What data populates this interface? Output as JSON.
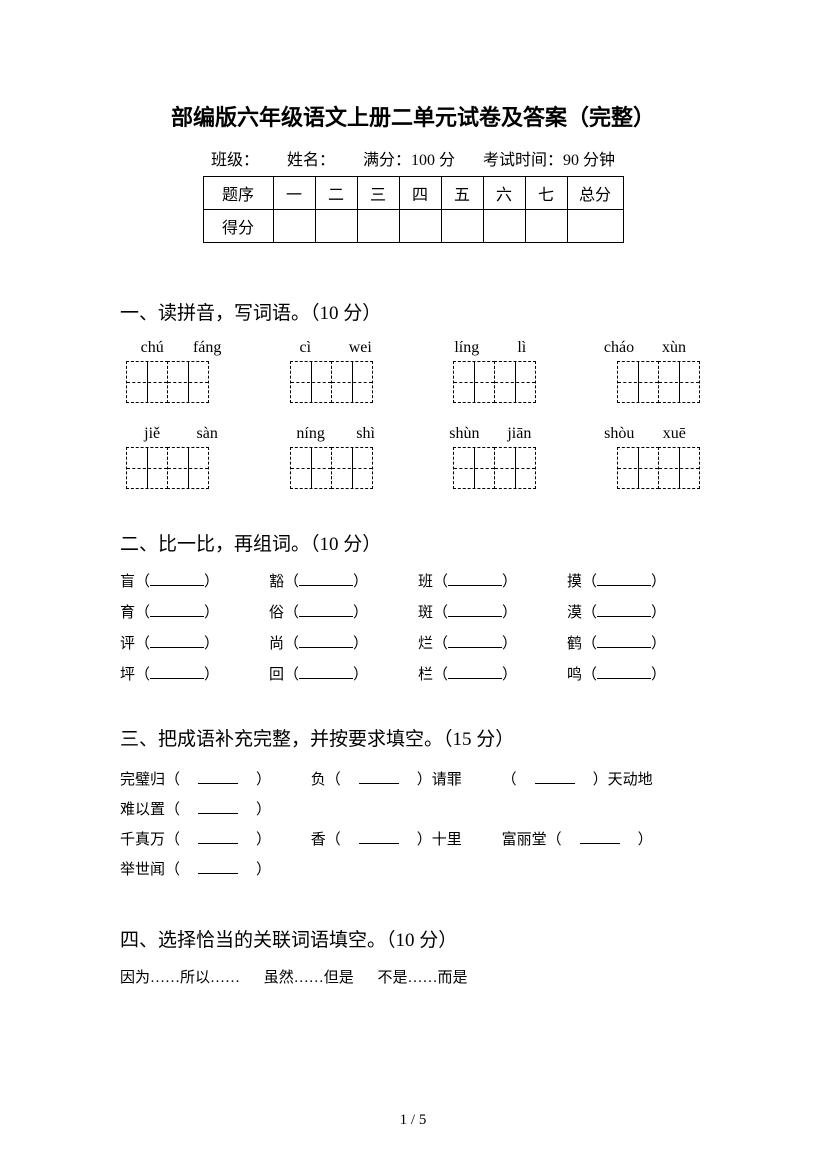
{
  "title": "部编版六年级语文上册二单元试卷及答案（完整）",
  "meta": {
    "class_label": "班级：",
    "name_label": "姓名：",
    "full_label": "满分：100 分",
    "time_label": "考试时间：90 分钟"
  },
  "score_table": {
    "header_label": "题序",
    "cols": [
      "一",
      "二",
      "三",
      "四",
      "五",
      "六",
      "七"
    ],
    "total_label": "总分",
    "score_label": "得分"
  },
  "section1": {
    "heading": "一、读拼音，写词语。（10 分）",
    "row1": [
      {
        "a": "chú",
        "b": "fáng"
      },
      {
        "a": "cì",
        "b": "wei"
      },
      {
        "a": "líng",
        "b": "lì"
      },
      {
        "a": "cháo",
        "b": "xùn"
      }
    ],
    "row2": [
      {
        "a": "jiě",
        "b": "sàn"
      },
      {
        "a": "níng",
        "b": "shì"
      },
      {
        "a": "shùn",
        "b": "jiān"
      },
      {
        "a": "shòu",
        "b": "xuē"
      }
    ]
  },
  "section2": {
    "heading": "二、比一比，再组词。（10 分）",
    "rows": [
      [
        "盲",
        "豁",
        "班",
        "摸"
      ],
      [
        "育",
        "俗",
        "斑",
        "漠"
      ],
      [
        "评",
        "尚",
        "烂",
        "鹤"
      ],
      [
        "坪",
        "回",
        "栏",
        "鸣"
      ]
    ]
  },
  "section3": {
    "heading": "三、把成语补充完整，并按要求填空。（15 分）",
    "line1": [
      "完璧归（",
      "）",
      "负（",
      "）请罪",
      "（",
      "）天动地",
      "难以置（",
      "）"
    ],
    "line2": [
      "千真万（",
      "）",
      "香（",
      "）十里",
      "富丽堂（",
      "）",
      "举世闻（",
      "）"
    ]
  },
  "section4": {
    "heading": "四、选择恰当的关联词语填空。（10 分）",
    "options": [
      "因为……所以……",
      "虽然……但是",
      "不是……而是"
    ]
  },
  "footer": "1 / 5",
  "colors": {
    "text": "#000000",
    "bg": "#ffffff"
  }
}
